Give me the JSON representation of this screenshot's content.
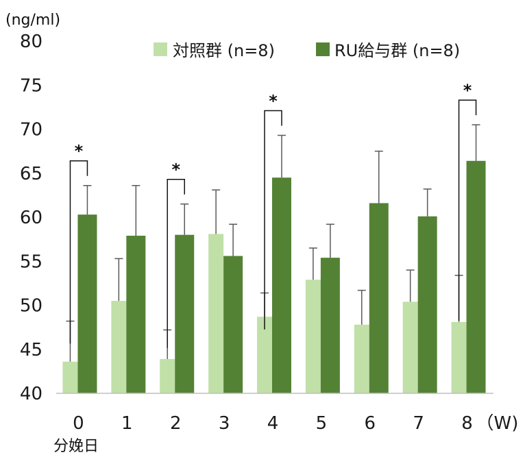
{
  "chart_data": {
    "type": "bar",
    "y_unit_label": "(ng/ml)",
    "x_unit_label": "（W)",
    "x_sublabel": "分娩日",
    "categories": [
      "0",
      "1",
      "2",
      "3",
      "4",
      "5",
      "6",
      "7",
      "8"
    ],
    "ylim": [
      40,
      80
    ],
    "yticks": [
      40,
      45,
      50,
      55,
      60,
      65,
      70,
      75,
      80
    ],
    "grid": false,
    "legend_position": "top-right",
    "series": [
      {
        "name": "対照群 (n=8)",
        "color": "#c0e0a8",
        "values": [
          43.6,
          50.5,
          43.9,
          58.1,
          48.7,
          52.9,
          47.8,
          50.4,
          48.1
        ],
        "errors": [
          4.6,
          4.8,
          3.3,
          5.0,
          2.7,
          3.6,
          3.9,
          3.6,
          5.3
        ]
      },
      {
        "name": "RU給与群 (n=8)",
        "color": "#548235",
        "values": [
          60.3,
          57.9,
          58.0,
          55.6,
          64.5,
          55.4,
          61.6,
          60.1,
          66.4
        ],
        "errors": [
          3.3,
          5.7,
          3.5,
          3.6,
          4.8,
          3.8,
          5.9,
          3.1,
          4.1
        ]
      }
    ],
    "error_bar_color": "#595959",
    "significance": {
      "marker": "*",
      "categories": [
        "0",
        "2",
        "4",
        "8"
      ]
    }
  }
}
